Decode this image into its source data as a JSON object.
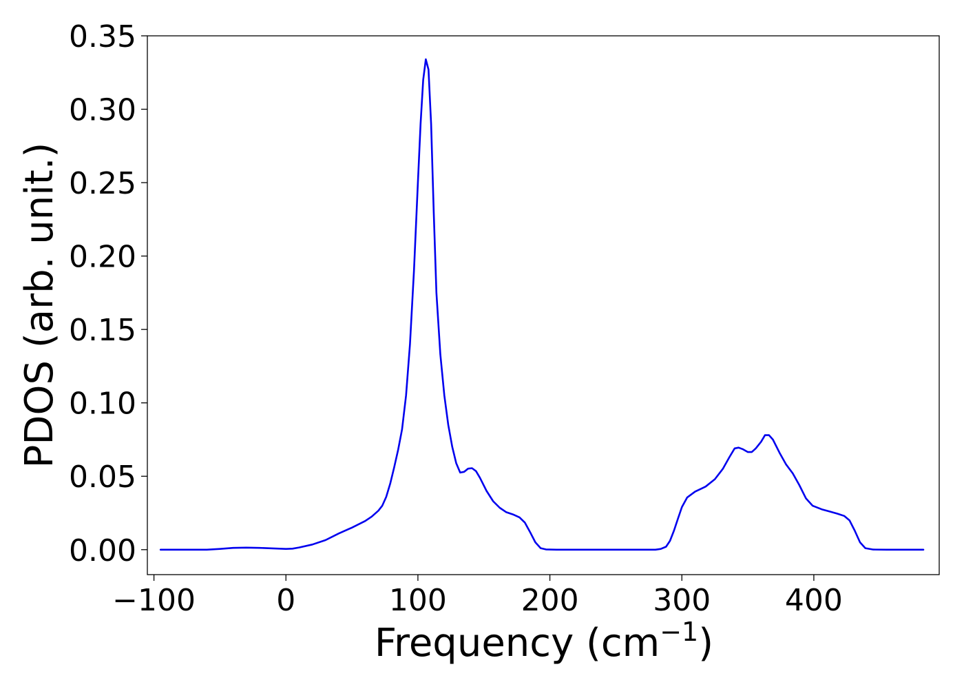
{
  "chart_data": {
    "type": "line",
    "title": "",
    "xlabel": "Frequency (cm",
    "xlabel_superscript": "−1",
    "xlabel_close": ")",
    "ylabel": "PDOS (arb. unit.)",
    "xlim": [
      -105,
      495
    ],
    "ylim": [
      -0.017,
      0.35
    ],
    "xticks": [
      -100,
      0,
      100,
      200,
      300,
      400
    ],
    "xtick_labels": [
      "−100",
      "0",
      "100",
      "200",
      "300",
      "400"
    ],
    "yticks": [
      0.0,
      0.05,
      0.1,
      0.15,
      0.2,
      0.25,
      0.3,
      0.35
    ],
    "ytick_labels": [
      "0.00",
      "0.05",
      "0.10",
      "0.15",
      "0.20",
      "0.25",
      "0.30",
      "0.35"
    ],
    "grid": false,
    "series": [
      {
        "color": "#0000ee",
        "points": [
          [
            -95,
            0.0
          ],
          [
            -80,
            0.0
          ],
          [
            -60,
            0.0
          ],
          [
            -50,
            0.0005
          ],
          [
            -40,
            0.0012
          ],
          [
            -30,
            0.0014
          ],
          [
            -20,
            0.0012
          ],
          [
            -10,
            0.0009
          ],
          [
            0,
            0.0005
          ],
          [
            5,
            0.0007
          ],
          [
            10,
            0.0015
          ],
          [
            20,
            0.0035
          ],
          [
            30,
            0.0065
          ],
          [
            40,
            0.011
          ],
          [
            50,
            0.015
          ],
          [
            60,
            0.0195
          ],
          [
            65,
            0.0225
          ],
          [
            70,
            0.0265
          ],
          [
            73,
            0.03
          ],
          [
            76,
            0.036
          ],
          [
            79,
            0.045
          ],
          [
            82,
            0.056
          ],
          [
            85,
            0.068
          ],
          [
            88,
            0.082
          ],
          [
            91,
            0.105
          ],
          [
            94,
            0.14
          ],
          [
            97,
            0.19
          ],
          [
            100,
            0.25
          ],
          [
            102,
            0.29
          ],
          [
            104,
            0.32
          ],
          [
            106,
            0.334
          ],
          [
            108,
            0.327
          ],
          [
            110,
            0.29
          ],
          [
            112,
            0.23
          ],
          [
            114,
            0.175
          ],
          [
            117,
            0.133
          ],
          [
            120,
            0.105
          ],
          [
            123,
            0.085
          ],
          [
            126,
            0.07
          ],
          [
            129,
            0.059
          ],
          [
            132,
            0.0525
          ],
          [
            135,
            0.053
          ],
          [
            138,
            0.0552
          ],
          [
            141,
            0.0555
          ],
          [
            144,
            0.0535
          ],
          [
            147,
            0.049
          ],
          [
            152,
            0.04
          ],
          [
            157,
            0.033
          ],
          [
            162,
            0.0285
          ],
          [
            167,
            0.0255
          ],
          [
            172,
            0.024
          ],
          [
            177,
            0.022
          ],
          [
            181,
            0.0185
          ],
          [
            185,
            0.012
          ],
          [
            189,
            0.005
          ],
          [
            193,
            0.001
          ],
          [
            197,
            0.0002
          ],
          [
            205,
            0.0
          ],
          [
            220,
            0.0
          ],
          [
            240,
            0.0
          ],
          [
            260,
            0.0
          ],
          [
            280,
            0.0
          ],
          [
            284,
            0.0005
          ],
          [
            288,
            0.002
          ],
          [
            291,
            0.006
          ],
          [
            294,
            0.013
          ],
          [
            297,
            0.021
          ],
          [
            300,
            0.029
          ],
          [
            304,
            0.0355
          ],
          [
            310,
            0.0395
          ],
          [
            318,
            0.043
          ],
          [
            325,
            0.048
          ],
          [
            331,
            0.055
          ],
          [
            336,
            0.063
          ],
          [
            340,
            0.069
          ],
          [
            343,
            0.0695
          ],
          [
            346,
            0.0685
          ],
          [
            350,
            0.0665
          ],
          [
            353,
            0.0665
          ],
          [
            356,
            0.069
          ],
          [
            360,
            0.0735
          ],
          [
            363,
            0.078
          ],
          [
            366,
            0.078
          ],
          [
            369,
            0.075
          ],
          [
            374,
            0.066
          ],
          [
            379,
            0.058
          ],
          [
            384,
            0.052
          ],
          [
            389,
            0.044
          ],
          [
            394,
            0.035
          ],
          [
            399,
            0.03
          ],
          [
            406,
            0.0275
          ],
          [
            412,
            0.026
          ],
          [
            418,
            0.0245
          ],
          [
            423,
            0.023
          ],
          [
            427,
            0.02
          ],
          [
            431,
            0.013
          ],
          [
            435,
            0.005
          ],
          [
            439,
            0.001
          ],
          [
            445,
            0.0001
          ],
          [
            455,
            0.0
          ],
          [
            470,
            0.0
          ],
          [
            483,
            0.0
          ]
        ]
      }
    ]
  }
}
